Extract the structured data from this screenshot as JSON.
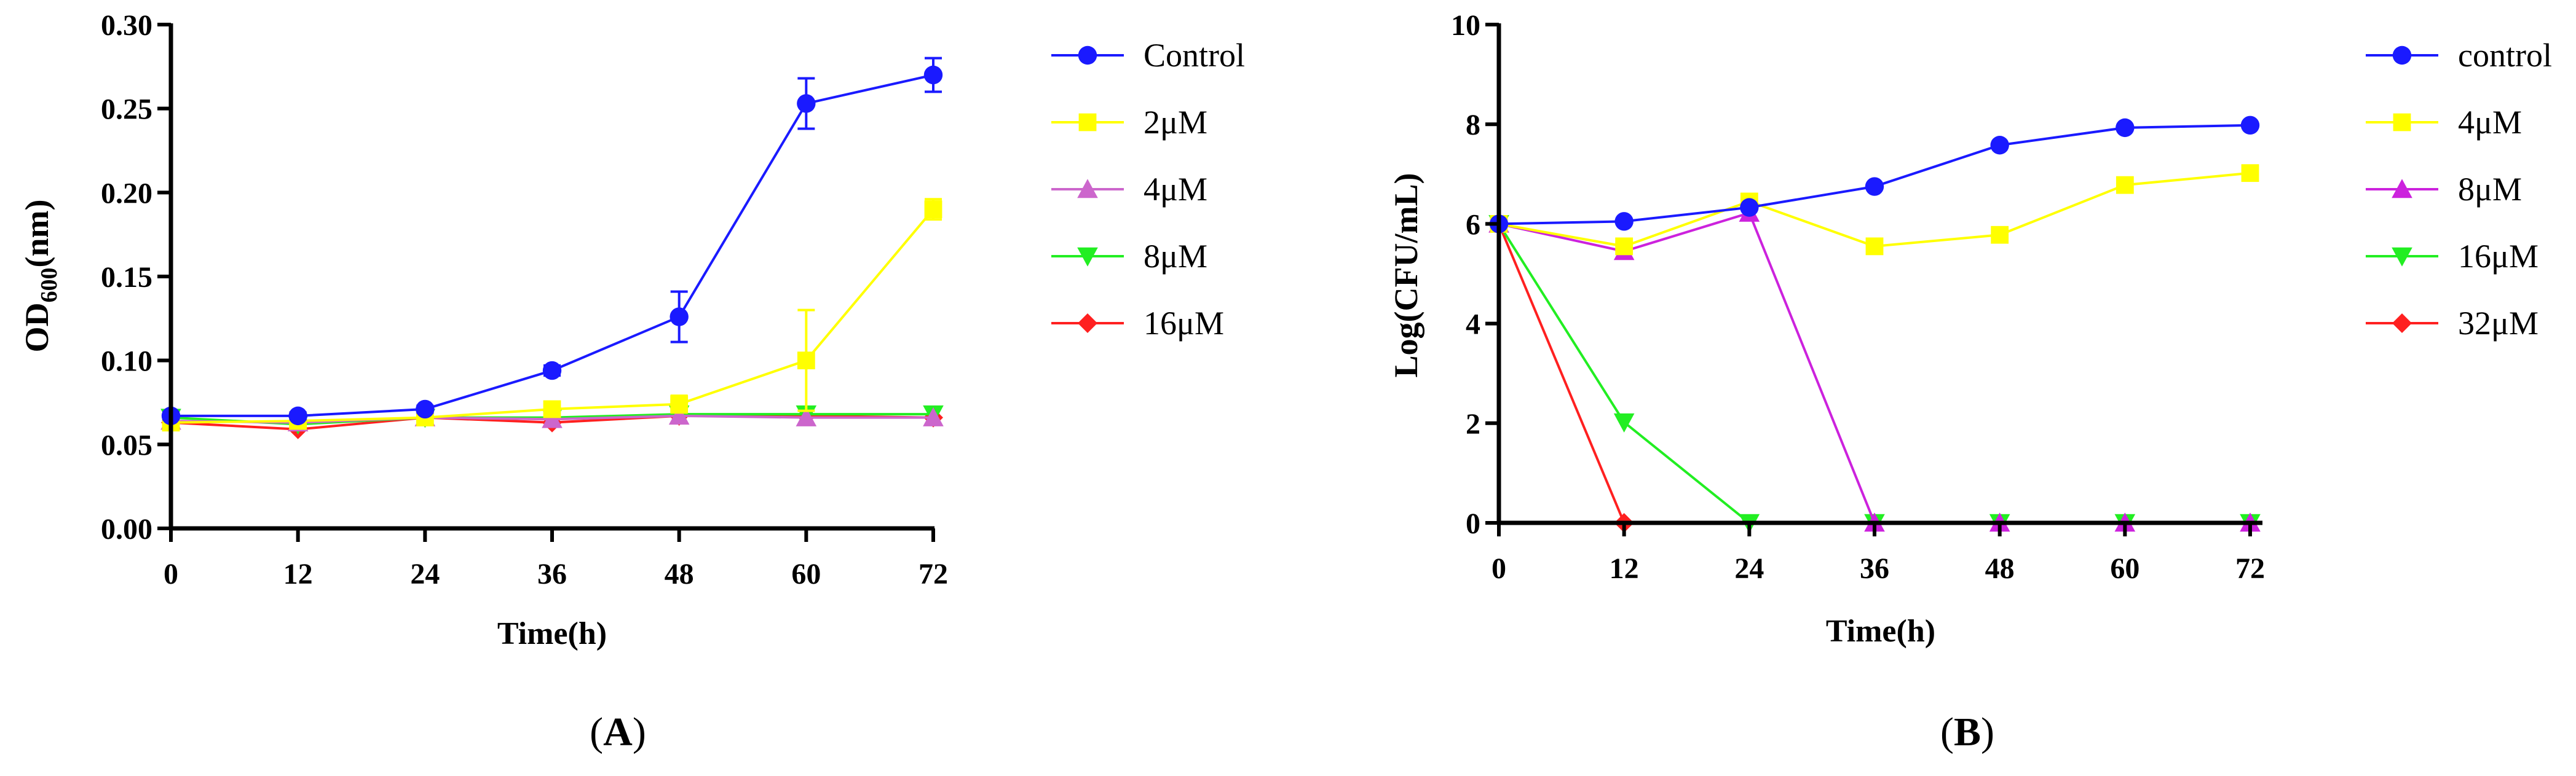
{
  "chart_data": [
    {
      "type": "line",
      "panel_label_prefix": "(",
      "panel_label": "A",
      "panel_label_suffix": ")",
      "xlabel": "Time(h)",
      "ylabel_main": "OD",
      "ylabel_sub": "600",
      "ylabel_tail": "(nm)",
      "x": [
        0,
        12,
        24,
        36,
        48,
        60,
        72
      ],
      "xlim": [
        0,
        72
      ],
      "ylim": [
        0,
        0.3
      ],
      "xticks": [
        0,
        12,
        24,
        36,
        48,
        60,
        72
      ],
      "xtick_labels": [
        "0",
        "12",
        "24",
        "36",
        "48",
        "60",
        "72"
      ],
      "yticks": [
        0,
        0.05,
        0.1,
        0.15,
        0.2,
        0.25,
        0.3
      ],
      "ytick_labels": [
        "0.00",
        "0.05",
        "0.10",
        "0.15",
        "0.20",
        "0.25",
        "0.30"
      ],
      "series": [
        {
          "name": "Control",
          "color": "#1a1aff",
          "marker": "circle",
          "values": [
            0.067,
            0.067,
            0.071,
            0.094,
            0.126,
            0.253,
            0.27
          ],
          "errors": [
            0.002,
            0.002,
            0.002,
            0.003,
            0.015,
            0.015,
            0.01
          ]
        },
        {
          "name": "2μM",
          "color": "#ffff00",
          "marker": "square",
          "values": [
            0.063,
            0.064,
            0.066,
            0.071,
            0.074,
            0.1,
            0.19
          ],
          "errors": [
            0.002,
            0.002,
            0.003,
            0.004,
            0.005,
            0.03,
            0.006
          ]
        },
        {
          "name": "4μM",
          "color": "#cc66cc",
          "marker": "triangle-up",
          "values": [
            0.064,
            0.063,
            0.066,
            0.065,
            0.067,
            0.066,
            0.066
          ],
          "errors": [
            0,
            0,
            0,
            0,
            0,
            0,
            0
          ]
        },
        {
          "name": "8μM",
          "color": "#22ee22",
          "marker": "triangle-down",
          "values": [
            0.066,
            0.062,
            0.066,
            0.066,
            0.068,
            0.068,
            0.068
          ],
          "errors": [
            0,
            0,
            0,
            0,
            0,
            0,
            0
          ]
        },
        {
          "name": "16μM",
          "color": "#ff2020",
          "marker": "diamond",
          "values": [
            0.063,
            0.059,
            0.066,
            0.063,
            0.067,
            0.067,
            0.066
          ],
          "errors": [
            0,
            0,
            0,
            0,
            0,
            0,
            0
          ]
        }
      ]
    },
    {
      "type": "line",
      "panel_label_prefix": "(",
      "panel_label": "B",
      "panel_label_suffix": ")",
      "xlabel": "Time(h)",
      "ylabel": "Log(CFU/mL)",
      "x": [
        0,
        12,
        24,
        36,
        48,
        60,
        72
      ],
      "xlim": [
        0,
        72
      ],
      "ylim": [
        0,
        10
      ],
      "xticks": [
        0,
        12,
        24,
        36,
        48,
        60,
        72
      ],
      "xtick_labels": [
        "0",
        "12",
        "24",
        "36",
        "48",
        "60",
        "72"
      ],
      "yticks": [
        0,
        2,
        4,
        6,
        8,
        10
      ],
      "ytick_labels": [
        "0",
        "2",
        "4",
        "6",
        "8",
        "10"
      ],
      "series": [
        {
          "name": "control",
          "color": "#1a1aff",
          "marker": "circle",
          "values": [
            6.0,
            6.05,
            6.33,
            6.75,
            7.58,
            7.93,
            7.98
          ]
        },
        {
          "name": "4μM",
          "color": "#ffff00",
          "marker": "square",
          "values": [
            6.0,
            5.55,
            6.45,
            5.55,
            5.78,
            6.78,
            7.02
          ]
        },
        {
          "name": "8μM",
          "color": "#cc22dd",
          "marker": "triangle-up",
          "values": [
            6.0,
            5.45,
            6.22,
            0,
            0,
            0,
            0
          ]
        },
        {
          "name": "16μM",
          "color": "#22ee22",
          "marker": "triangle-down",
          "values": [
            6.0,
            2.02,
            0,
            0,
            0,
            0,
            0
          ]
        },
        {
          "name": "32μM",
          "color": "#ff2020",
          "marker": "diamond",
          "values": [
            6.0,
            0,
            null,
            null,
            null,
            null,
            null
          ]
        }
      ]
    }
  ]
}
